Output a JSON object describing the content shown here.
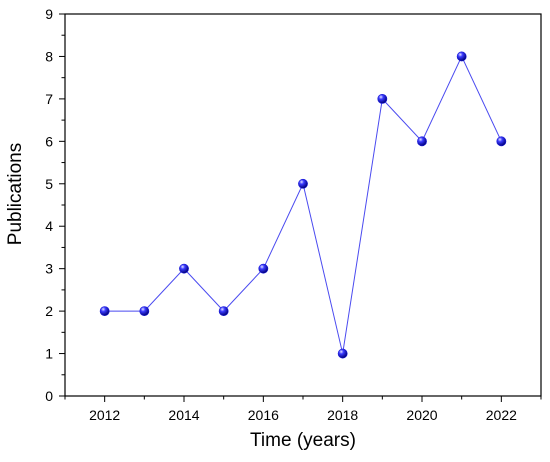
{
  "chart_data": {
    "type": "line",
    "xlabel": "Time (years)",
    "ylabel": "Publications",
    "xlim": [
      2011,
      2023
    ],
    "ylim": [
      0,
      9
    ],
    "x_ticks": [
      "2012",
      "2014",
      "2016",
      "2018",
      "2020",
      "2022"
    ],
    "y_ticks": [
      "0",
      "1",
      "2",
      "3",
      "4",
      "5",
      "6",
      "7",
      "8",
      "9"
    ],
    "grid": false,
    "series": [
      {
        "x": [
          2012,
          2013,
          2014,
          2015,
          2016,
          2017,
          2018,
          2019,
          2020,
          2021,
          2022
        ],
        "y": [
          2,
          2,
          3,
          2,
          3,
          5,
          1,
          7,
          6,
          8,
          6
        ],
        "line_color": "#4a4af0",
        "marker_color": "#1a1ad8"
      }
    ]
  }
}
